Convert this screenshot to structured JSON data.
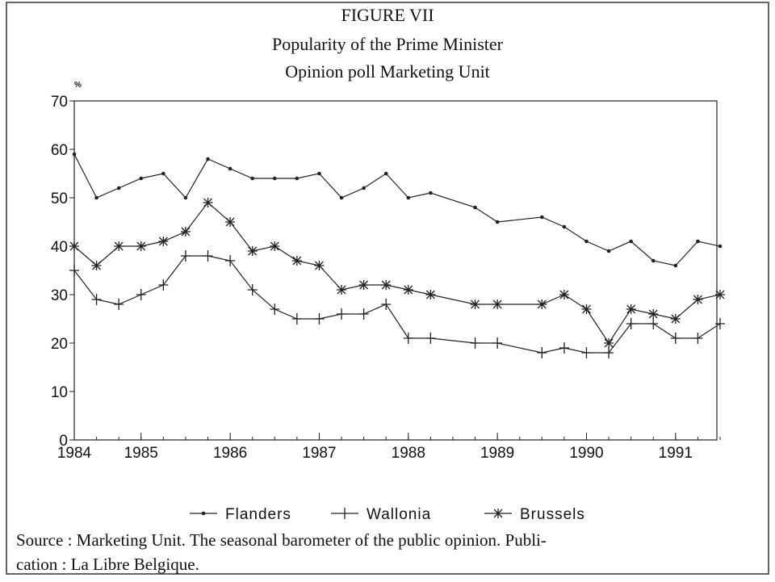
{
  "chart_data": {
    "type": "line",
    "title": [
      "FIGURE VII",
      "Popularity of the Prime Minister",
      "Opinion poll Marketing Unit"
    ],
    "y_label": "%",
    "x": [
      1984.25,
      1984.5,
      1984.75,
      1985,
      1985.25,
      1985.5,
      1985.75,
      1986,
      1986.25,
      1986.5,
      1986.75,
      1987,
      1987.25,
      1987.5,
      1987.75,
      1988,
      1988.25,
      1988.75,
      1989,
      1989.5,
      1989.75,
      1990,
      1990.25,
      1990.5,
      1990.75,
      1991,
      1991.25,
      1991.5
    ],
    "series": [
      {
        "name": "Flanders",
        "color": "#222",
        "marker": "dot",
        "values": [
          59,
          50,
          52,
          54,
          55,
          50,
          58,
          56,
          54,
          54,
          54,
          55,
          50,
          52,
          55,
          50,
          51,
          48,
          45,
          46,
          44,
          41,
          39,
          41,
          37,
          36,
          41,
          40
        ]
      },
      {
        "name": "Wallonia",
        "color": "#222",
        "marker": "plus",
        "values": [
          35,
          29,
          28,
          30,
          32,
          38,
          38,
          37,
          31,
          27,
          25,
          25,
          26,
          26,
          28,
          21,
          21,
          20,
          20,
          18,
          19,
          18,
          18,
          24,
          24,
          21,
          21,
          24
        ]
      },
      {
        "name": "Brussels",
        "color": "#222",
        "marker": "star",
        "values": [
          40,
          36,
          40,
          40,
          41,
          43,
          49,
          45,
          39,
          40,
          37,
          36,
          31,
          32,
          32,
          31,
          30,
          28,
          28,
          28,
          30,
          27,
          20,
          27,
          26,
          25,
          29,
          30
        ]
      }
    ],
    "xlim": [
      1984.25,
      1991.5
    ],
    "xticks": [
      {
        "value": 1984.25,
        "label": "1984"
      },
      1985,
      1986,
      1987,
      1988,
      1989,
      1990,
      1991
    ],
    "ylim": [
      0,
      70
    ],
    "yticks": [
      0,
      10,
      20,
      30,
      40,
      50,
      60,
      70
    ],
    "grid": false,
    "legend": "bottom",
    "source": [
      "Source : Marketing Unit. The seasonal barometer of the public opinion. Publi-",
      "cation : La Libre Belgique."
    ]
  }
}
